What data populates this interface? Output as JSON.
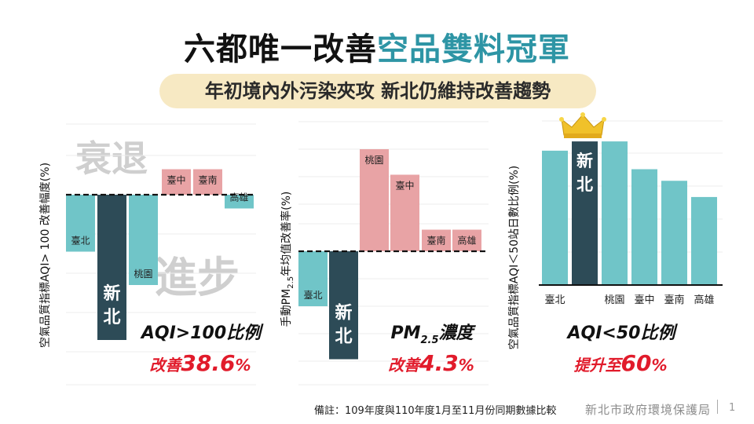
{
  "slide": {
    "title_part1": "六都唯一改善",
    "title_part2": "空品雙料冠軍",
    "subtitle": "年初境內外污染夾攻  新北仍維持改善趨勢",
    "footnote": "備註：109年度與110年度1月至11月份同期數據比較",
    "agency": "新北市政府環境保護局",
    "page_number": "1"
  },
  "colors": {
    "teal": "#70c5c8",
    "dark": "#2d4b57",
    "pink": "#e8a3a5",
    "red": "#e11b2b",
    "title_accent": "#2e95a5",
    "subtitle_bg": "#f7e9c3"
  },
  "chart_data": [
    {
      "type": "bar",
      "ylabel": "空氣品質指標AQI> 100 改善幅度(%)",
      "categories": [
        "臺北",
        "新北",
        "桃園",
        "臺中",
        "臺南",
        "高雄"
      ],
      "values": [
        -1.45,
        -3.7,
        -2.3,
        0.65,
        0.65,
        -0.35
      ],
      "bar_colors": [
        "teal",
        "dark",
        "teal",
        "pink",
        "pink",
        "teal"
      ],
      "highlight": "新北",
      "watermark_top": "衰退",
      "watermark_bottom": "進步",
      "caption": "AQI>100比例",
      "result_label": "改善",
      "result_value": "38.6",
      "result_unit": "%"
    },
    {
      "type": "bar",
      "ylabel_prefix": "手動PM",
      "ylabel_sub": "2.5",
      "ylabel_suffix": "年均值改善率(%)",
      "categories": [
        "臺北",
        "新北",
        "桃園",
        "臺中",
        "臺南",
        "高雄"
      ],
      "values": [
        -1.4,
        -2.75,
        2.6,
        1.95,
        0.55,
        0.55
      ],
      "bar_colors": [
        "teal",
        "dark",
        "pink",
        "pink",
        "pink",
        "pink"
      ],
      "highlight": "新北",
      "caption_prefix": "PM",
      "caption_sub": "2.5",
      "caption_suffix": "濃度",
      "result_label": "改善",
      "result_value": "4.3",
      "result_unit": "%"
    },
    {
      "type": "bar",
      "ylabel": "空氣品質指標AQI＜50站日數比例(%)",
      "categories": [
        "臺北",
        "新北",
        "桃園",
        "臺中",
        "臺南",
        "高雄"
      ],
      "values": [
        5.8,
        6.2,
        6.2,
        5.0,
        4.5,
        3.8
      ],
      "bar_colors": [
        "teal",
        "dark",
        "teal",
        "teal",
        "teal",
        "teal"
      ],
      "highlight": "新北",
      "crown_icon": "crown-icon",
      "caption": "AQI<50比例",
      "result_label": "提升至",
      "result_value": "60",
      "result_unit": "%"
    }
  ]
}
